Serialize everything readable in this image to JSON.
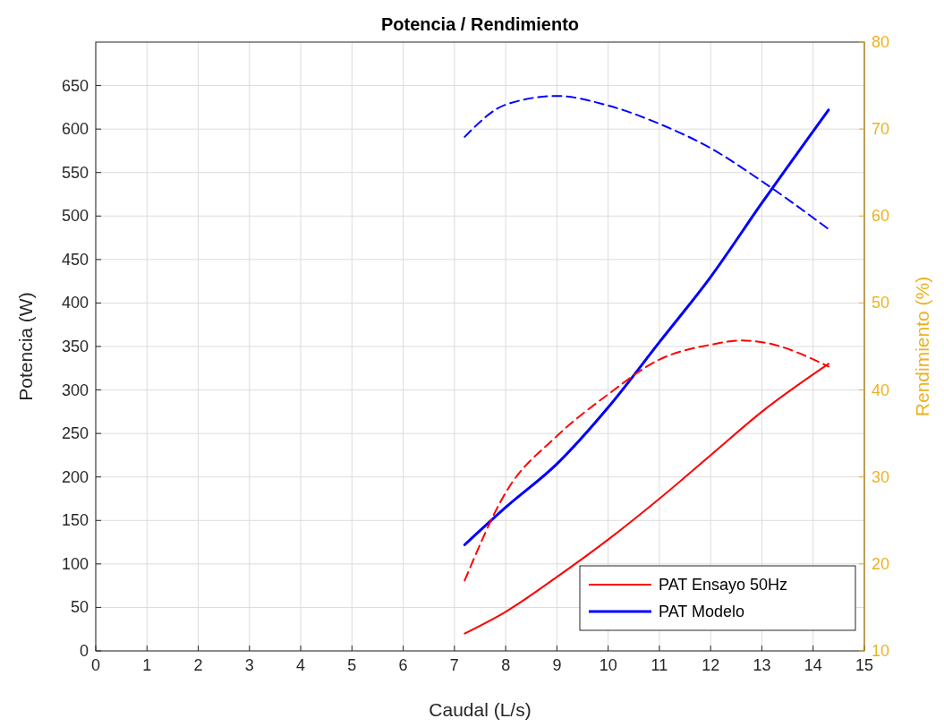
{
  "chart_data": {
    "type": "line",
    "title": "Potencia / Rendimiento",
    "xlabel": "Caudal (L/s)",
    "ylabel": "Potencia (W)",
    "y2label": "Rendimiento (%)",
    "xlim": [
      0,
      15
    ],
    "xticks": [
      0,
      1,
      2,
      3,
      4,
      5,
      6,
      7,
      8,
      9,
      10,
      11,
      12,
      13,
      14,
      15
    ],
    "ylim": [
      0,
      700
    ],
    "yticks": [
      0,
      50,
      100,
      150,
      200,
      250,
      300,
      350,
      400,
      450,
      500,
      550,
      600,
      650
    ],
    "y2lim": [
      10,
      80
    ],
    "y2ticks": [
      10,
      20,
      30,
      40,
      50,
      60,
      70,
      80
    ],
    "grid": true,
    "legend": "bottom right",
    "series": [
      {
        "name": "PAT Ensayo 50Hz",
        "color": "#ff0000",
        "x": [
          7.2,
          8,
          9,
          10,
          11,
          12,
          13,
          14.3
        ],
        "values": [
          20,
          45,
          85,
          128,
          175,
          225,
          275,
          330
        ]
      },
      {
        "name": "PAT Modelo",
        "color": "#0000ff",
        "x": [
          7.2,
          8,
          9,
          10,
          11,
          12,
          13,
          14.3
        ],
        "values": [
          122,
          165,
          215,
          280,
          355,
          430,
          515,
          622
        ]
      },
      {
        "color": "#ff0000",
        "axis": "y2",
        "line_style": "dashed",
        "x": [
          7.2,
          8,
          9,
          10,
          11,
          12,
          12.6,
          13,
          14.3
        ],
        "values": [
          18.1,
          28.2,
          34.7,
          39.5,
          43.5,
          45.2,
          45.7,
          45.5,
          42.7
        ]
      },
      {
        "color": "#0000ff",
        "axis": "y2",
        "line_style": "dashed",
        "x": [
          7.2,
          8,
          9,
          10,
          11,
          12,
          13,
          14.3
        ],
        "values": [
          69.1,
          72.8,
          73.8,
          72.7,
          70.6,
          67.8,
          64,
          58.5
        ]
      }
    ]
  }
}
